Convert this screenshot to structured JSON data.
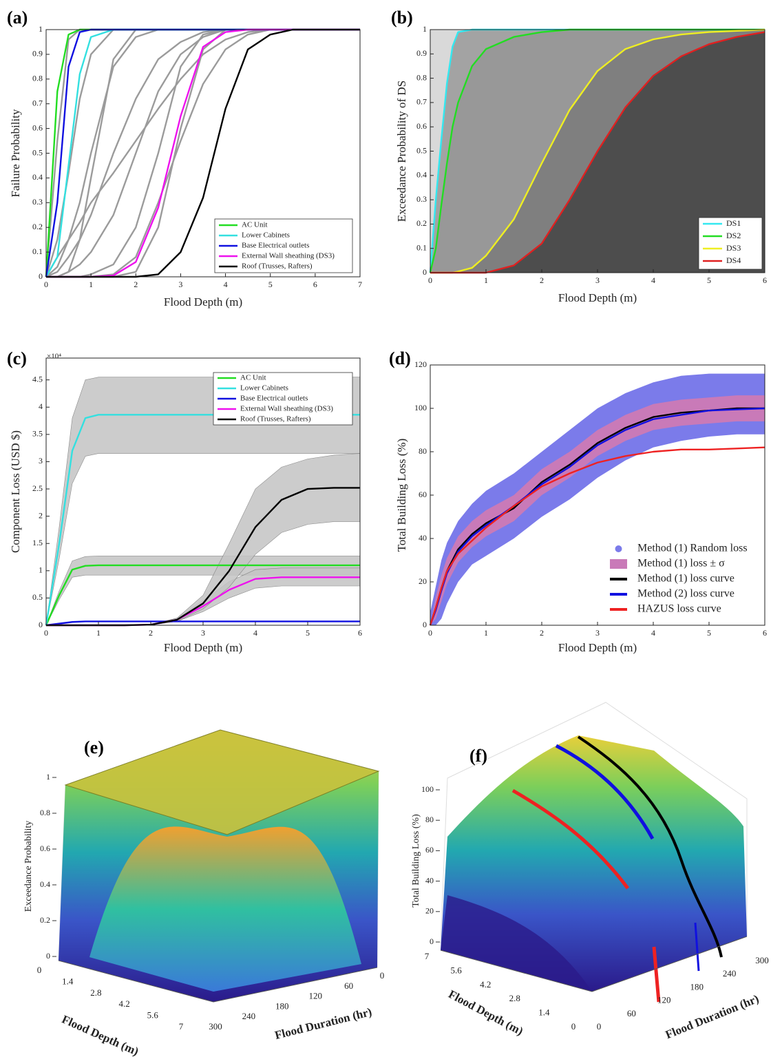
{
  "chart_data": [
    {
      "label": "(a)",
      "type": "line",
      "xlabel": "Flood Depth (m)",
      "ylabel": "Failure Probability",
      "x": [
        0,
        0.25,
        0.5,
        0.75,
        1,
        1.5,
        2,
        2.5,
        3,
        3.5,
        4,
        4.5,
        5,
        5.5,
        6,
        7
      ],
      "xlim": [
        0,
        7
      ],
      "xticks": [
        0,
        1,
        2,
        3,
        4,
        5,
        6,
        7
      ],
      "ylim": [
        0,
        1
      ],
      "yticks": [
        0,
        0.1,
        0.2,
        0.3,
        0.4,
        0.5,
        0.6,
        0.7,
        0.8,
        0.9,
        1
      ],
      "legend": "lower right",
      "series": [
        {
          "color": "#9b9b9b",
          "values": [
            0,
            0.55,
            0.96,
            1,
            1,
            1,
            1,
            1,
            1,
            1,
            1,
            1,
            1,
            1,
            1,
            1
          ]
        },
        {
          "color": "#9b9b9b",
          "values": [
            0,
            0.15,
            0.42,
            0.72,
            0.9,
            1,
            1,
            1,
            1,
            1,
            1,
            1,
            1,
            1,
            1,
            1
          ]
        },
        {
          "color": "#9b9b9b",
          "values": [
            0,
            0.04,
            0.15,
            0.3,
            0.5,
            0.85,
            0.97,
            1,
            1,
            1,
            1,
            1,
            1,
            1,
            1,
            1
          ]
        },
        {
          "color": "#9b9b9b",
          "values": [
            0,
            0.02,
            0.08,
            0.15,
            0.25,
            0.5,
            0.72,
            0.88,
            0.95,
            0.99,
            1,
            1,
            1,
            1,
            1,
            1
          ]
        },
        {
          "color": "#9b9b9b",
          "values": [
            0,
            0,
            0.02,
            0.05,
            0.1,
            0.25,
            0.5,
            0.75,
            0.9,
            0.97,
            1,
            1,
            1,
            1,
            1,
            1
          ]
        },
        {
          "color": "#9b9b9b",
          "values": [
            0,
            0,
            0,
            0,
            0.01,
            0.05,
            0.2,
            0.5,
            0.85,
            0.98,
            1,
            1,
            1,
            1,
            1,
            1
          ]
        },
        {
          "color": "#9b9b9b",
          "values": [
            0,
            0.08,
            0.15,
            0.22,
            0.3,
            0.42,
            0.55,
            0.68,
            0.8,
            0.9,
            0.96,
            0.99,
            1,
            1,
            1,
            1
          ]
        },
        {
          "color": "#9b9b9b",
          "values": [
            0,
            0,
            0,
            0,
            0,
            0.01,
            0.08,
            0.3,
            0.55,
            0.78,
            0.92,
            0.98,
            1,
            1,
            1,
            1
          ]
        },
        {
          "color": "#9b9b9b",
          "values": [
            0,
            0,
            0,
            0,
            0,
            0,
            0.02,
            0.2,
            0.6,
            0.92,
            1,
            1,
            1,
            1,
            1,
            1
          ]
        },
        {
          "color": "#9b9b9b",
          "values": [
            0,
            0,
            0.02,
            0.15,
            0.4,
            0.88,
            1,
            1,
            1,
            1,
            1,
            1,
            1,
            1,
            1,
            1
          ]
        },
        {
          "name": "AC Unit",
          "color": "#22dd22",
          "values": [
            0,
            0.75,
            0.98,
            1,
            1,
            1,
            1,
            1,
            1,
            1,
            1,
            1,
            1,
            1,
            1,
            1
          ]
        },
        {
          "name": "Lower Cabinets",
          "color": "#33e0e0",
          "values": [
            0,
            0.08,
            0.45,
            0.82,
            0.97,
            1,
            1,
            1,
            1,
            1,
            1,
            1,
            1,
            1,
            1,
            1
          ]
        },
        {
          "name": "Base Electrical outlets",
          "color": "#1010e0",
          "values": [
            0,
            0.3,
            0.85,
            0.99,
            1,
            1,
            1,
            1,
            1,
            1,
            1,
            1,
            1,
            1,
            1,
            1
          ]
        },
        {
          "name": "External Wall sheathing (DS3)",
          "color": "#ee11ee",
          "values": [
            0,
            0,
            0,
            0,
            0,
            0.005,
            0.06,
            0.28,
            0.65,
            0.93,
            0.99,
            1,
            1,
            1,
            1,
            1
          ]
        },
        {
          "name": "Roof (Trusses, Rafters)",
          "color": "#000000",
          "values": [
            0,
            0,
            0,
            0,
            0,
            0,
            0,
            0.01,
            0.1,
            0.32,
            0.68,
            0.92,
            0.98,
            1,
            1,
            1
          ]
        }
      ]
    },
    {
      "label": "(b)",
      "type": "line",
      "xlabel": "Flood Depth (m)",
      "ylabel": "Exceedance Probability of DS",
      "x": [
        0,
        0.1,
        0.2,
        0.3,
        0.4,
        0.5,
        0.75,
        1,
        1.5,
        2,
        2.5,
        3,
        3.5,
        4,
        4.5,
        5,
        5.5,
        6
      ],
      "xlim": [
        0,
        6
      ],
      "xticks": [
        0,
        1,
        2,
        3,
        4,
        5,
        6
      ],
      "ylim": [
        0,
        1
      ],
      "yticks": [
        0,
        0.1,
        0.2,
        0.3,
        0.4,
        0.5,
        0.6,
        0.7,
        0.8,
        0.9,
        1
      ],
      "legend": "lower right",
      "plot_background": "#d9d9d9",
      "series": [
        {
          "name": "DS1",
          "color": "#33e8f0",
          "fill": "#a3a3a3",
          "values": [
            0,
            0.3,
            0.55,
            0.78,
            0.93,
            0.99,
            1,
            1,
            1,
            1,
            1,
            1,
            1,
            1,
            1,
            1,
            1,
            1
          ]
        },
        {
          "name": "DS2",
          "color": "#22dd22",
          "fill": "#989898",
          "values": [
            0,
            0.1,
            0.28,
            0.45,
            0.6,
            0.7,
            0.85,
            0.92,
            0.97,
            0.99,
            1,
            1,
            1,
            1,
            1,
            1,
            1,
            1
          ]
        },
        {
          "name": "DS3",
          "color": "#eeee22",
          "fill": "#7f7f7f",
          "values": [
            0,
            0,
            0,
            0,
            0,
            0.005,
            0.02,
            0.07,
            0.22,
            0.45,
            0.67,
            0.83,
            0.92,
            0.96,
            0.98,
            0.99,
            0.995,
            1
          ]
        },
        {
          "name": "DS4",
          "color": "#e02020",
          "fill": "#4d4d4d",
          "values": [
            0,
            0,
            0,
            0,
            0,
            0,
            0,
            0,
            0.03,
            0.12,
            0.3,
            0.5,
            0.68,
            0.81,
            0.89,
            0.94,
            0.97,
            0.99
          ]
        }
      ]
    },
    {
      "label": "(c)",
      "type": "line",
      "xlabel": "Flood Depth (m)",
      "ylabel": "Component Loss (USD $)",
      "y_multiplier": "×10⁴",
      "x": [
        0,
        0.25,
        0.5,
        0.75,
        1,
        1.5,
        2,
        2.5,
        3,
        3.5,
        4,
        4.5,
        5,
        5.5,
        6
      ],
      "xlim": [
        0,
        6
      ],
      "xticks": [
        0,
        1,
        2,
        3,
        4,
        5,
        6
      ],
      "ylim": [
        0,
        4.9
      ],
      "yticks": [
        0,
        0.5,
        1,
        1.5,
        2,
        2.5,
        3,
        3.5,
        4,
        4.5
      ],
      "legend": "upper right",
      "band_color": "#c4c4c4",
      "series": [
        {
          "name": "AC Unit",
          "color": "#22dd22",
          "values": [
            0,
            0.55,
            1.02,
            1.09,
            1.1,
            1.1,
            1.1,
            1.1,
            1.1,
            1.1,
            1.1,
            1.1,
            1.1,
            1.1,
            1.1
          ],
          "lower": [
            0,
            0.47,
            0.88,
            0.92,
            0.92,
            0.92,
            0.92,
            0.92,
            0.92,
            0.92,
            0.92,
            0.92,
            0.92,
            0.92,
            0.92
          ],
          "upper": [
            0,
            0.63,
            1.18,
            1.26,
            1.27,
            1.27,
            1.27,
            1.27,
            1.27,
            1.27,
            1.27,
            1.27,
            1.27,
            1.27,
            1.27
          ]
        },
        {
          "name": "Lower Cabinets",
          "color": "#33e0e0",
          "values": [
            0,
            1.5,
            3.2,
            3.8,
            3.86,
            3.86,
            3.86,
            3.86,
            3.86,
            3.86,
            3.86,
            3.86,
            3.86,
            3.86,
            3.86
          ],
          "lower": [
            0,
            1.22,
            2.6,
            3.1,
            3.15,
            3.15,
            3.15,
            3.15,
            3.15,
            3.15,
            3.15,
            3.15,
            3.15,
            3.15,
            3.15
          ],
          "upper": [
            0,
            1.8,
            3.8,
            4.5,
            4.55,
            4.55,
            4.55,
            4.55,
            4.55,
            4.55,
            4.55,
            4.55,
            4.55,
            4.55,
            4.55
          ]
        },
        {
          "name": "Base Electrical outlets",
          "color": "#1010e0",
          "values": [
            0,
            0.03,
            0.06,
            0.07,
            0.07,
            0.07,
            0.07,
            0.07,
            0.07,
            0.07,
            0.07,
            0.07,
            0.07,
            0.07,
            0.07
          ]
        },
        {
          "name": "External Wall sheathing (DS3)",
          "color": "#ee11ee",
          "values": [
            0,
            0,
            0,
            0,
            0,
            0,
            0.01,
            0.1,
            0.35,
            0.65,
            0.85,
            0.88,
            0.88,
            0.88,
            0.88
          ],
          "lower": [
            0,
            0,
            0,
            0,
            0,
            0,
            0.005,
            0.07,
            0.25,
            0.5,
            0.68,
            0.72,
            0.72,
            0.72,
            0.72
          ],
          "upper": [
            0,
            0,
            0,
            0,
            0,
            0,
            0.015,
            0.13,
            0.45,
            0.8,
            1.02,
            1.05,
            1.05,
            1.05,
            1.05
          ]
        },
        {
          "name": "Roof (Trusses, Rafters)",
          "color": "#000000",
          "values": [
            0,
            0,
            0,
            0,
            0,
            0,
            0.01,
            0.1,
            0.4,
            1.0,
            1.8,
            2.3,
            2.5,
            2.52,
            2.52
          ],
          "lower": [
            0,
            0,
            0,
            0,
            0,
            0,
            0.005,
            0.07,
            0.3,
            0.7,
            1.3,
            1.7,
            1.85,
            1.9,
            1.9
          ],
          "upper": [
            0,
            0,
            0,
            0,
            0,
            0,
            0.015,
            0.13,
            0.55,
            1.5,
            2.5,
            2.9,
            3.05,
            3.12,
            3.15
          ]
        }
      ]
    },
    {
      "label": "(d)",
      "type": "line",
      "xlabel": "Flood Depth (m)",
      "ylabel": "Total Building Loss (%)",
      "x": [
        0,
        0.1,
        0.2,
        0.3,
        0.5,
        0.75,
        1,
        1.5,
        2,
        2.5,
        3,
        3.5,
        4,
        4.5,
        5,
        5.5,
        6
      ],
      "xlim": [
        0,
        6
      ],
      "xticks": [
        0,
        1,
        2,
        3,
        4,
        5,
        6
      ],
      "ylim": [
        0,
        120
      ],
      "yticks": [
        0,
        20,
        40,
        60,
        80,
        100,
        120
      ],
      "legend": "lower right",
      "series": [
        {
          "name": "Method (1) Random loss",
          "color": "#7b7bea",
          "marker": "circle",
          "lower": [
            0,
            0,
            3,
            10,
            20,
            28,
            32,
            40,
            50,
            58,
            68,
            76,
            82,
            85,
            87,
            88,
            88
          ],
          "upper": [
            6,
            18,
            30,
            38,
            48,
            56,
            62,
            70,
            80,
            90,
            100,
            107,
            112,
            115,
            116,
            116,
            116
          ]
        },
        {
          "name": "Method (1) loss ± σ",
          "color": "#c97ab8",
          "lower": [
            0,
            3,
            11,
            19,
            29,
            36,
            41,
            48,
            60,
            68,
            78,
            85,
            90,
            92,
            93,
            94,
            94
          ],
          "upper": [
            0,
            13,
            23,
            31,
            41,
            48,
            53,
            60,
            72,
            80,
            90,
            97,
            102,
            104,
            105,
            106,
            106
          ]
        },
        {
          "name": "Method (1) loss curve",
          "color": "#000000",
          "values": [
            0,
            8,
            17,
            25,
            35,
            42,
            47,
            54,
            66,
            74,
            84,
            91,
            96,
            98,
            99,
            100,
            100
          ]
        },
        {
          "name": "Method (2) loss curve",
          "color": "#1010e0",
          "values": [
            0,
            7,
            16,
            24,
            34,
            41,
            46,
            55,
            65,
            73,
            83,
            90,
            95,
            97,
            99,
            99.5,
            100
          ]
        },
        {
          "name": "HAZUS loss curve",
          "color": "#ee2222",
          "values": [
            0,
            8,
            17,
            25,
            33,
            39,
            45,
            55,
            64,
            70,
            75,
            78,
            80,
            81,
            81,
            81.5,
            82
          ]
        }
      ]
    },
    {
      "label": "(e)",
      "type": "surface3d",
      "zlabel": "Exceedance Probability",
      "xlabel": "Flood Depth (m)",
      "ylabel": "Flood Duration (hr)",
      "zlim": [
        0,
        1
      ],
      "zticks": [
        0,
        0.2,
        0.4,
        0.6,
        0.8,
        1
      ],
      "xlim": [
        0,
        7
      ],
      "xticks": [
        0,
        1.4,
        2.8,
        4.2,
        5.6,
        7
      ],
      "ylim": [
        0,
        300
      ],
      "yticks": [
        300,
        240,
        180,
        120,
        60,
        0
      ]
    },
    {
      "label": "(f)",
      "type": "surface3d",
      "zlabel": "Total Building Loss (%)",
      "xlabel": "Flood Depth (m)",
      "ylabel": "Flood Duration (hr)",
      "zlim": [
        0,
        100
      ],
      "zticks": [
        0,
        20,
        40,
        60,
        80,
        100
      ],
      "xlim": [
        0,
        7
      ],
      "xticks": [
        7,
        5.6,
        4.2,
        2.8,
        1.4,
        0
      ],
      "ylim": [
        0,
        300
      ],
      "yticks": [
        0,
        60,
        120,
        180,
        240,
        300
      ]
    }
  ]
}
